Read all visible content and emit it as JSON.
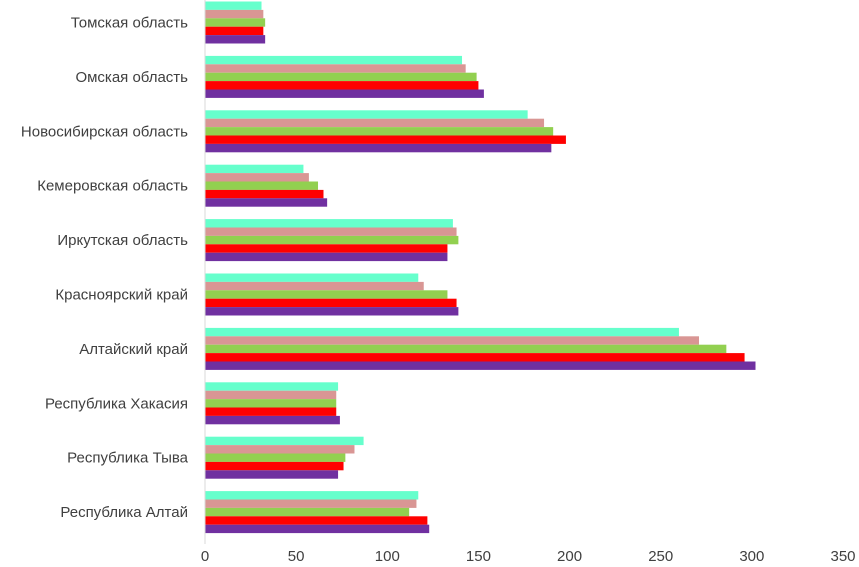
{
  "chart_data": {
    "type": "bar",
    "orientation": "horizontal",
    "title": "",
    "xlabel": "",
    "ylabel": "",
    "xlim": [
      0,
      350
    ],
    "x_ticks": [
      "0",
      "50",
      "100",
      "150",
      "200",
      "250",
      "300",
      "350"
    ],
    "grid": false,
    "legend": "none",
    "categories": [
      "Томская область",
      "Омская область",
      "Новосибирская область",
      "Кемеровская область",
      "Иркутская область",
      "Красноярский край",
      "Алтайский край",
      "Республика Хакасия",
      "Республика Тыва",
      "Республика Алтай"
    ],
    "series": [
      {
        "color": "#66ffcc",
        "values": [
          31,
          141,
          177,
          54,
          136,
          117,
          260,
          73,
          87,
          117
        ]
      },
      {
        "color": "#d99694",
        "values": [
          32,
          143,
          186,
          57,
          138,
          120,
          271,
          72,
          82,
          116
        ]
      },
      {
        "color": "#92d050",
        "values": [
          33,
          149,
          191,
          62,
          139,
          133,
          286,
          72,
          77,
          112
        ]
      },
      {
        "color": "#ff0000",
        "values": [
          32,
          150,
          198,
          65,
          133,
          138,
          296,
          72,
          76,
          122
        ]
      },
      {
        "color": "#7030a0",
        "values": [
          33,
          153,
          190,
          67,
          133,
          139,
          302,
          74,
          73,
          123
        ]
      }
    ]
  }
}
